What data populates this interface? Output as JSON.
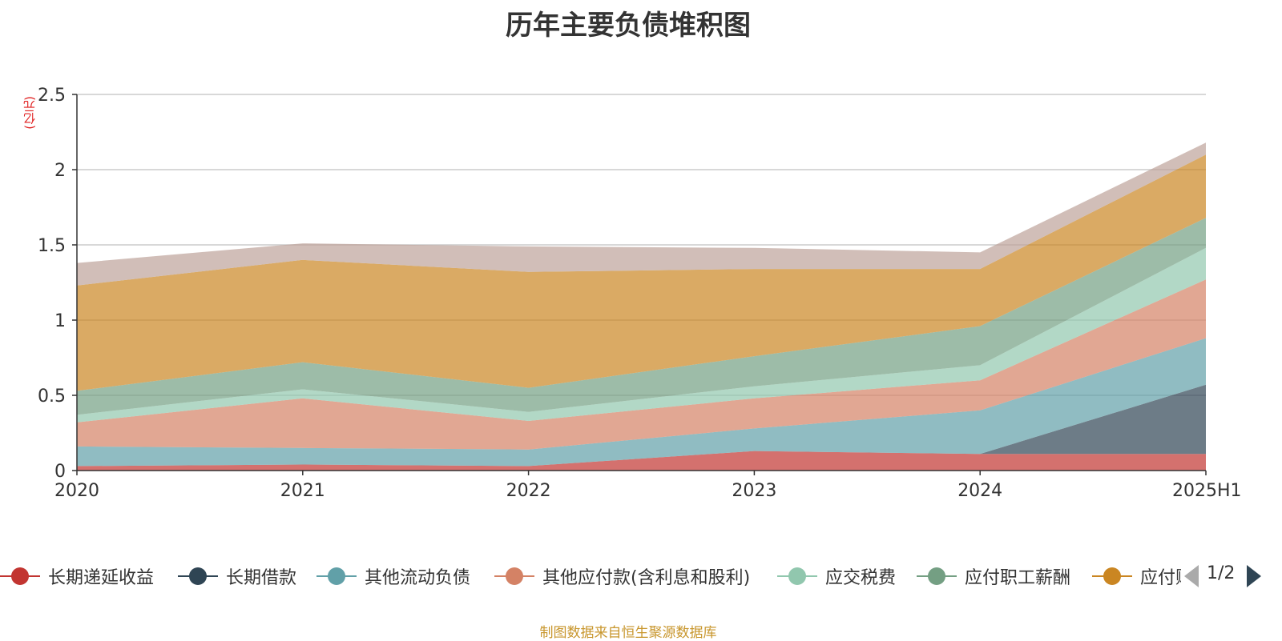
{
  "chart_data": {
    "type": "area",
    "stacked": true,
    "title": "历年主要负债堆积图",
    "ylabel": "(亿元)",
    "categories": [
      "2020",
      "2021",
      "2022",
      "2023",
      "2024",
      "2025H1"
    ],
    "y_ticks": [
      "0",
      "0.5",
      "1",
      "1.5",
      "2",
      "2.5"
    ],
    "ylim": [
      0,
      2.5
    ],
    "grid": true,
    "legend_position": "bottom",
    "series": [
      {
        "name": "长期递延收益",
        "color": "#c23531",
        "values": [
          0.03,
          0.04,
          0.03,
          0.13,
          0.11,
          0.11
        ]
      },
      {
        "name": "长期借款",
        "color": "#2f4554",
        "values": [
          0,
          0,
          0,
          0,
          0,
          0.46
        ]
      },
      {
        "name": "其他流动负债",
        "color": "#61a0a8",
        "values": [
          0.13,
          0.11,
          0.11,
          0.15,
          0.29,
          0.31
        ]
      },
      {
        "name": "其他应付款(含利息和股利)",
        "color": "#d48265",
        "values": [
          0.16,
          0.33,
          0.19,
          0.2,
          0.2,
          0.39
        ]
      },
      {
        "name": "应交税费",
        "color": "#91c7ae",
        "values": [
          0.05,
          0.06,
          0.06,
          0.08,
          0.1,
          0.21
        ]
      },
      {
        "name": "应付职工薪酬",
        "color": "#749f83",
        "values": [
          0.16,
          0.18,
          0.16,
          0.2,
          0.26,
          0.2
        ]
      },
      {
        "name": "应付账款",
        "color": "#ca8622",
        "values": [
          0.7,
          0.68,
          0.77,
          0.58,
          0.38,
          0.42
        ]
      },
      {
        "name": "",
        "color": "#bda29a",
        "values": [
          0.15,
          0.11,
          0.17,
          0.14,
          0.11,
          0.08
        ]
      }
    ]
  },
  "legend": {
    "items": [
      {
        "label": "长期递延收益",
        "color": "#c23531"
      },
      {
        "label": "长期借款",
        "color": "#2f4554"
      },
      {
        "label": "其他流动负债",
        "color": "#61a0a8"
      },
      {
        "label": "其他应付款(含利息和股利)",
        "color": "#d48265"
      },
      {
        "label": "应交税费",
        "color": "#91c7ae"
      },
      {
        "label": "应付职工薪酬",
        "color": "#749f83"
      },
      {
        "label": "应付账款",
        "color": "#ca8622"
      }
    ],
    "page": "1/2"
  },
  "source": "制图数据来自恒生聚源数据库"
}
